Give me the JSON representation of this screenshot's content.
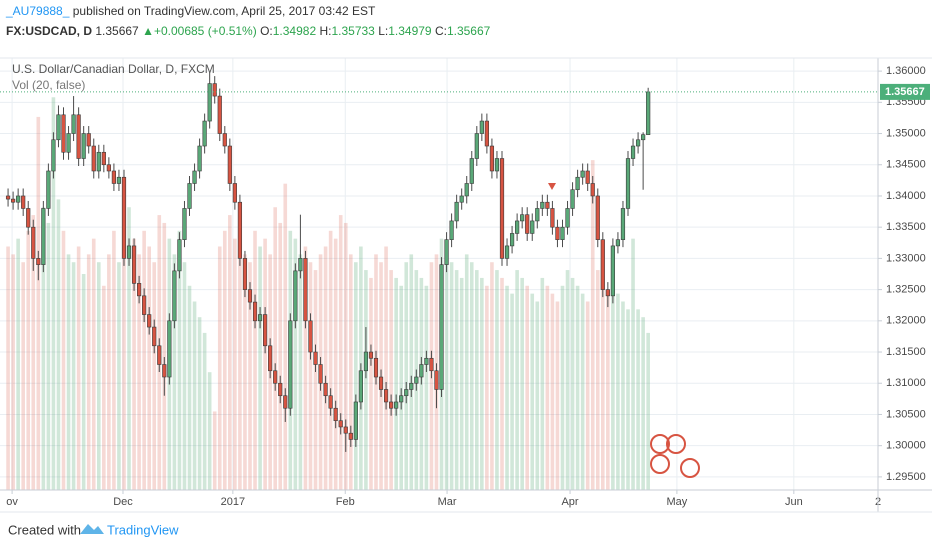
{
  "header": {
    "user": "_AU79888_",
    "published": " published on TradingView.com, April 25, 2017 03:42 EST",
    "symbol": "FX:USDCAD, D",
    "arrow": "▲",
    "change": "+0.00685 (+0.51%)",
    "o": "O:",
    "h": "H:",
    "l": "L:",
    "c": "C:"
  },
  "footer": {
    "created": "Created with",
    "brand": "TradingView"
  },
  "chart_data": {
    "type": "candlestick",
    "title": "U.S. Dollar/Canadian Dollar, D, FXCM",
    "up_color": "#5aa878",
    "down_color": "#d75442",
    "last_color": "#4caf7a",
    "grid": true,
    "xlim": [
      -1.6,
      172.6
    ],
    "xticks": [
      {
        "value": 0.8,
        "label": "ov"
      },
      {
        "value": 22.8,
        "label": "Dec"
      },
      {
        "value": 44.6,
        "label": "2017"
      },
      {
        "value": 66.9,
        "label": "Feb"
      },
      {
        "value": 87.1,
        "label": "Mar"
      },
      {
        "value": 111.5,
        "label": "Apr"
      },
      {
        "value": 132.7,
        "label": "May"
      },
      {
        "value": 155.9,
        "label": "Jun"
      },
      {
        "value": 172.6,
        "label": "2"
      }
    ],
    "ylim": [
      1.2929,
      1.3621
    ],
    "yticks": [
      {
        "value": 1.295,
        "label": "1.29500"
      },
      {
        "value": 1.3,
        "label": "1.30000"
      },
      {
        "value": 1.305,
        "label": "1.30500"
      },
      {
        "value": 1.31,
        "label": "1.31000"
      },
      {
        "value": 1.315,
        "label": "1.31500"
      },
      {
        "value": 1.32,
        "label": "1.32000"
      },
      {
        "value": 1.325,
        "label": "1.32500"
      },
      {
        "value": 1.33,
        "label": "1.33000"
      },
      {
        "value": 1.335,
        "label": "1.33500"
      },
      {
        "value": 1.34,
        "label": "1.34000"
      },
      {
        "value": 1.345,
        "label": "1.34500"
      },
      {
        "value": 1.35,
        "label": "1.35000"
      },
      {
        "value": 1.355,
        "label": "1.35500"
      },
      {
        "value": 1.36,
        "label": "1.36000"
      }
    ],
    "open": [
      1.34,
      1.3395,
      1.339,
      1.34,
      1.338,
      1.335,
      1.33,
      1.329,
      1.338,
      1.344,
      1.349,
      1.353,
      1.347,
      1.35,
      1.353,
      1.346,
      1.35,
      1.348,
      1.344,
      1.347,
      1.345,
      1.344,
      1.342,
      1.343,
      1.33,
      1.332,
      1.326,
      1.324,
      1.321,
      1.319,
      1.316,
      1.313,
      1.311,
      1.32,
      1.328,
      1.333,
      1.338,
      1.342,
      1.344,
      1.348,
      1.352,
      1.358,
      1.356,
      1.35,
      1.348,
      1.342,
      1.339,
      1.33,
      1.325,
      1.323,
      1.32,
      1.321,
      1.316,
      1.312,
      1.31,
      1.308,
      1.306,
      1.32,
      1.328,
      1.33,
      1.32,
      1.315,
      1.313,
      1.31,
      1.308,
      1.306,
      1.304,
      1.303,
      1.302,
      1.301,
      1.307,
      1.312,
      1.315,
      1.314,
      1.311,
      1.309,
      1.307,
      1.306,
      1.307,
      1.308,
      1.309,
      1.31,
      1.311,
      1.313,
      1.314,
      1.312,
      1.309,
      1.329,
      1.333,
      1.336,
      1.339,
      1.34,
      1.342,
      1.346,
      1.35,
      1.352,
      1.348,
      1.344,
      1.346,
      1.33,
      1.332,
      1.334,
      1.336,
      1.337,
      1.334,
      1.336,
      1.338,
      1.339,
      1.338,
      1.335,
      1.333,
      1.335,
      1.338,
      1.341,
      1.343,
      1.344,
      1.342,
      1.34,
      1.333,
      1.325,
      1.324,
      1.332,
      1.333,
      1.338,
      1.346,
      1.348,
      1.349,
      1.34982
    ],
    "high": [
      1.3412,
      1.3407,
      1.3412,
      1.3412,
      1.3392,
      1.3362,
      1.3312,
      1.3392,
      1.3452,
      1.3502,
      1.3545,
      1.3542,
      1.3512,
      1.356,
      1.3542,
      1.3512,
      1.3512,
      1.3492,
      1.3482,
      1.3482,
      1.3462,
      1.3452,
      1.3442,
      1.3442,
      1.3332,
      1.3332,
      1.3272,
      1.3252,
      1.3222,
      1.3202,
      1.3172,
      1.3142,
      1.3212,
      1.3292,
      1.3342,
      1.3392,
      1.3432,
      1.3452,
      1.3492,
      1.3532,
      1.3598,
      1.3592,
      1.3572,
      1.3512,
      1.3492,
      1.3432,
      1.3402,
      1.3312,
      1.3262,
      1.3242,
      1.3222,
      1.3222,
      1.3172,
      1.3132,
      1.3112,
      1.3092,
      1.3212,
      1.3292,
      1.337,
      1.3312,
      1.3212,
      1.3162,
      1.3142,
      1.3112,
      1.3092,
      1.3072,
      1.3052,
      1.3042,
      1.3032,
      1.3082,
      1.3132,
      1.319,
      1.3162,
      1.3152,
      1.3122,
      1.3102,
      1.3082,
      1.3082,
      1.3092,
      1.3102,
      1.3112,
      1.3122,
      1.3142,
      1.3152,
      1.3152,
      1.3132,
      1.3302,
      1.3342,
      1.3372,
      1.3402,
      1.3412,
      1.3432,
      1.3472,
      1.3512,
      1.3532,
      1.3532,
      1.3492,
      1.3472,
      1.3472,
      1.3332,
      1.3352,
      1.3372,
      1.3382,
      1.3382,
      1.3372,
      1.3392,
      1.3402,
      1.3402,
      1.3392,
      1.3362,
      1.3362,
      1.3392,
      1.3422,
      1.3442,
      1.3452,
      1.3452,
      1.3432,
      1.3412,
      1.3342,
      1.3262,
      1.3332,
      1.3342,
      1.3392,
      1.3472,
      1.3492,
      1.3502,
      1.3502,
      1.35733
    ],
    "low": [
      1.3383,
      1.3378,
      1.3378,
      1.3368,
      1.3338,
      1.328,
      1.3265,
      1.3278,
      1.3368,
      1.3428,
      1.3478,
      1.3458,
      1.3458,
      1.3488,
      1.3448,
      1.3448,
      1.3468,
      1.3428,
      1.3428,
      1.3438,
      1.3428,
      1.3408,
      1.3408,
      1.3288,
      1.3288,
      1.3248,
      1.3228,
      1.3198,
      1.3178,
      1.3148,
      1.3118,
      1.308,
      1.3098,
      1.3188,
      1.3268,
      1.3318,
      1.3368,
      1.3408,
      1.3428,
      1.3468,
      1.3508,
      1.3548,
      1.3488,
      1.3468,
      1.3408,
      1.3378,
      1.3288,
      1.3238,
      1.3218,
      1.3188,
      1.3188,
      1.3148,
      1.3108,
      1.3088,
      1.3068,
      1.3038,
      1.3048,
      1.3188,
      1.3268,
      1.3188,
      1.3138,
      1.3118,
      1.3088,
      1.3068,
      1.3048,
      1.3028,
      1.3018,
      1.299,
      1.2998,
      1.2998,
      1.3058,
      1.3108,
      1.3128,
      1.3098,
      1.3078,
      1.3058,
      1.3048,
      1.3048,
      1.3058,
      1.3068,
      1.3078,
      1.3088,
      1.3098,
      1.3118,
      1.3108,
      1.306,
      1.3078,
      1.3278,
      1.3318,
      1.3348,
      1.3378,
      1.3388,
      1.3408,
      1.3448,
      1.3488,
      1.3468,
      1.3428,
      1.3428,
      1.3288,
      1.3288,
      1.3308,
      1.3328,
      1.3348,
      1.3328,
      1.3328,
      1.3348,
      1.3368,
      1.3368,
      1.3338,
      1.3318,
      1.3318,
      1.3338,
      1.3368,
      1.3398,
      1.3418,
      1.3408,
      1.3388,
      1.3318,
      1.3238,
      1.3222,
      1.3228,
      1.3308,
      1.3318,
      1.3368,
      1.3448,
      1.3468,
      1.341,
      1.34979
    ],
    "close": [
      1.3395,
      1.339,
      1.34,
      1.338,
      1.335,
      1.33,
      1.329,
      1.338,
      1.344,
      1.349,
      1.353,
      1.347,
      1.35,
      1.353,
      1.346,
      1.35,
      1.348,
      1.344,
      1.347,
      1.345,
      1.344,
      1.342,
      1.343,
      1.33,
      1.332,
      1.326,
      1.324,
      1.321,
      1.319,
      1.316,
      1.313,
      1.311,
      1.32,
      1.328,
      1.333,
      1.338,
      1.342,
      1.344,
      1.348,
      1.352,
      1.358,
      1.356,
      1.35,
      1.348,
      1.342,
      1.339,
      1.33,
      1.325,
      1.323,
      1.32,
      1.321,
      1.316,
      1.312,
      1.31,
      1.308,
      1.306,
      1.32,
      1.328,
      1.33,
      1.32,
      1.315,
      1.313,
      1.31,
      1.308,
      1.306,
      1.304,
      1.303,
      1.302,
      1.301,
      1.307,
      1.312,
      1.315,
      1.314,
      1.311,
      1.309,
      1.307,
      1.306,
      1.307,
      1.308,
      1.309,
      1.31,
      1.311,
      1.313,
      1.314,
      1.312,
      1.309,
      1.329,
      1.333,
      1.336,
      1.339,
      1.34,
      1.342,
      1.346,
      1.35,
      1.352,
      1.348,
      1.344,
      1.346,
      1.33,
      1.332,
      1.334,
      1.336,
      1.337,
      1.334,
      1.336,
      1.338,
      1.339,
      1.338,
      1.335,
      1.333,
      1.335,
      1.338,
      1.341,
      1.343,
      1.344,
      1.342,
      1.34,
      1.333,
      1.325,
      1.324,
      1.332,
      1.333,
      1.338,
      1.346,
      1.348,
      1.349,
      1.34982,
      1.35667
    ],
    "volume": {
      "name": "Vol (20, false)",
      "up_color": "rgba(90,168,120,0.28)",
      "down_color": "rgba(215,84,66,0.22)",
      "ylim": [
        0,
        110
      ],
      "values": [
        62,
        60,
        64,
        58,
        66,
        70,
        95,
        72,
        68,
        100,
        74,
        66,
        60,
        58,
        62,
        55,
        60,
        64,
        58,
        52,
        60,
        66,
        58,
        70,
        72,
        64,
        60,
        66,
        62,
        58,
        70,
        68,
        64,
        60,
        66,
        58,
        52,
        48,
        44,
        40,
        30,
        20,
        62,
        66,
        70,
        64,
        62,
        60,
        58,
        66,
        62,
        64,
        60,
        72,
        68,
        78,
        66,
        64,
        60,
        62,
        58,
        56,
        60,
        62,
        66,
        64,
        70,
        68,
        60,
        58,
        62,
        56,
        54,
        60,
        58,
        62,
        56,
        54,
        52,
        58,
        60,
        56,
        54,
        52,
        58,
        60,
        64,
        62,
        58,
        56,
        54,
        60,
        58,
        56,
        54,
        52,
        58,
        56,
        54,
        52,
        50,
        56,
        54,
        52,
        50,
        48,
        54,
        52,
        50,
        48,
        52,
        56,
        54,
        52,
        50,
        48,
        84,
        56,
        54,
        50,
        52,
        50,
        48,
        46,
        64,
        46,
        44,
        40
      ]
    }
  }
}
